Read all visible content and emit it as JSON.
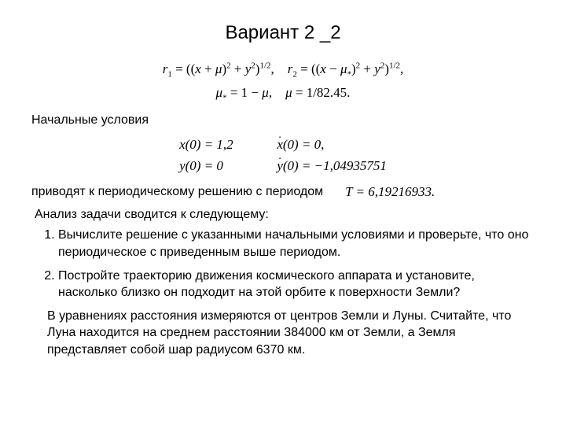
{
  "title": "Вариант  2 _2",
  "eq1_line1": "r₁ = ((x + μ)² + y²)^{1/2},   r₂ = ((x − μ_*)² + y²)^{1/2},",
  "eq1_line2": "μ_* = 1 − μ,   μ = 1/82.45.",
  "heading_ic": "Начальные условия",
  "ic_x0": "x(0) = 1,2",
  "ic_xdot0": "ẋ(0) = 0,",
  "ic_y0": "y(0) = 0",
  "ic_ydot0": "ẏ(0) = −1,04935751",
  "periodic_text": "приводят к периодическому решению с периодом",
  "period_value": "T = 6,19216933.",
  "analysis_intro": "Анализ задачи сводится к  следующему:",
  "task1": "Вычислите решение с указанными начальными условиями и проверьте, что оно периодическое с приведенным выше периодом.",
  "task2": "Постройте траекторию движения космического аппарата и установите, насколько близко он подходит на этой орбите к поверхности Земли?",
  "note": "В уравнениях расстояния измеряются от центров Земли и Луны. Считайте, что Луна находится на среднем расстоянии  384000 км от Земли, а Земля представляет собой шар радиусом 6370 км."
}
